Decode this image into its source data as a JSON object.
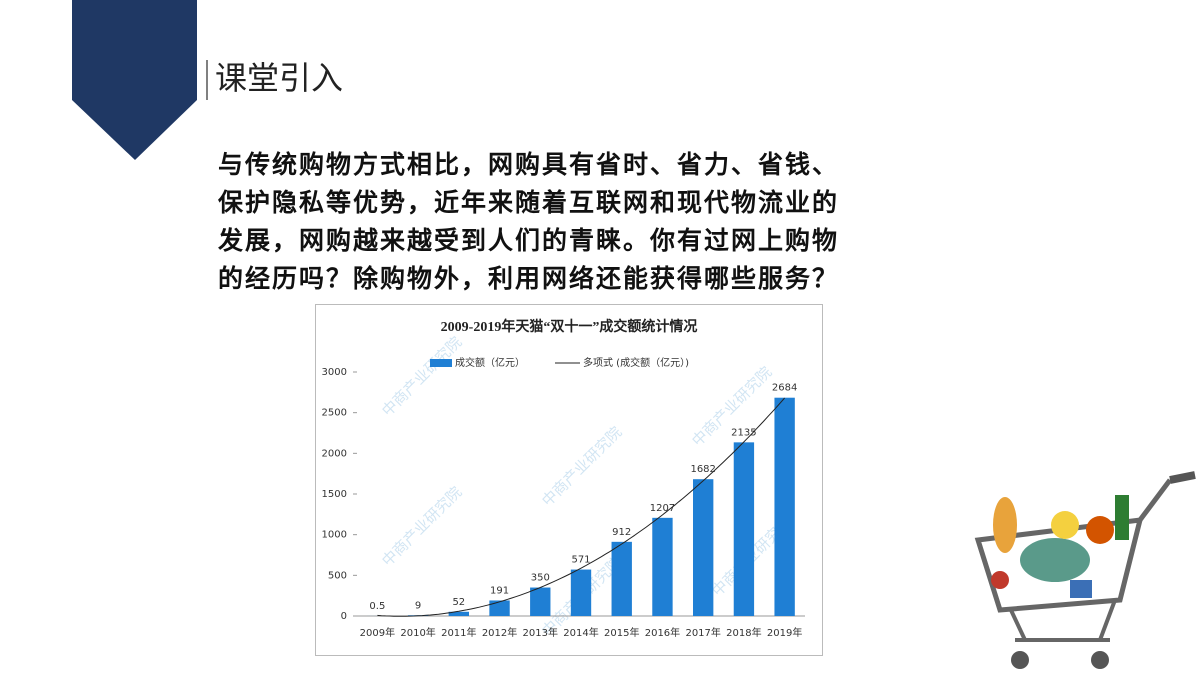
{
  "header": {
    "title": "课堂引入"
  },
  "body": {
    "lines": [
      "与传统购物方式相比，网购具有省时、省力、省钱、",
      "保护隐私等优势，近年来随着互联网和现代物流业的",
      "发展，网购越来越受到人们的青睐。你有过网上购物",
      "的经历吗？除购物外，利用网络还能获得哪些服务？"
    ]
  },
  "chart_data": {
    "type": "bar",
    "title": "2009-2019年天猫“双十一”成交额统计情况",
    "categories": [
      "2009年",
      "2010年",
      "2011年",
      "2012年",
      "2013年",
      "2014年",
      "2015年",
      "2016年",
      "2017年",
      "2018年",
      "2019年"
    ],
    "series": [
      {
        "name": "成交额（亿元）",
        "color": "#1f7fd4",
        "values": [
          0.5,
          9,
          52,
          191,
          350,
          571,
          912,
          1207,
          1682,
          2135,
          2684
        ]
      }
    ],
    "trendline": {
      "name": "多项式 (成交额（亿元）)",
      "type": "polynomial",
      "color": "#222222"
    },
    "ylim": [
      0,
      3000
    ],
    "yticks": [
      0,
      500,
      1000,
      1500,
      2000,
      2500,
      3000
    ],
    "grid": false,
    "watermark": "中商产业研究院"
  }
}
